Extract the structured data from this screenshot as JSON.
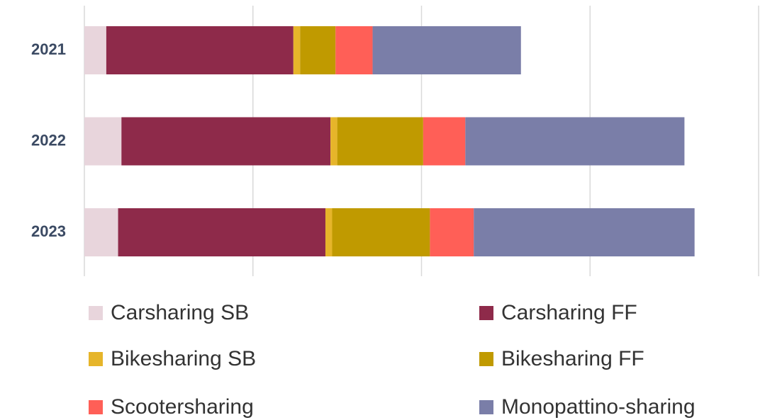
{
  "chart_data": {
    "type": "bar",
    "orientation": "horizontal",
    "stacked": true,
    "categories": [
      "2021",
      "2022",
      "2023"
    ],
    "series": [
      {
        "name": "Carsharing SB",
        "color": "#e8d5dc",
        "values": [
          0.13,
          0.22,
          0.2
        ]
      },
      {
        "name": "Carsharing FF",
        "color": "#8e2a4a",
        "values": [
          1.11,
          1.24,
          1.23
        ]
      },
      {
        "name": "Bikesharing SB",
        "color": "#e6b52a",
        "values": [
          0.04,
          0.04,
          0.04
        ]
      },
      {
        "name": "Bikesharing FF",
        "color": "#c09a00",
        "values": [
          0.21,
          0.51,
          0.58
        ]
      },
      {
        "name": "Scootersharing",
        "color": "#ff5f57",
        "values": [
          0.22,
          0.25,
          0.26
        ]
      },
      {
        "name": "Monopattino-sharing",
        "color": "#7a7ea8",
        "values": [
          0.88,
          1.3,
          1.31
        ]
      }
    ],
    "xlim": [
      0,
      4
    ],
    "xticks": [
      0,
      1,
      2,
      3,
      4
    ],
    "grid": true,
    "legend": "bottom"
  }
}
